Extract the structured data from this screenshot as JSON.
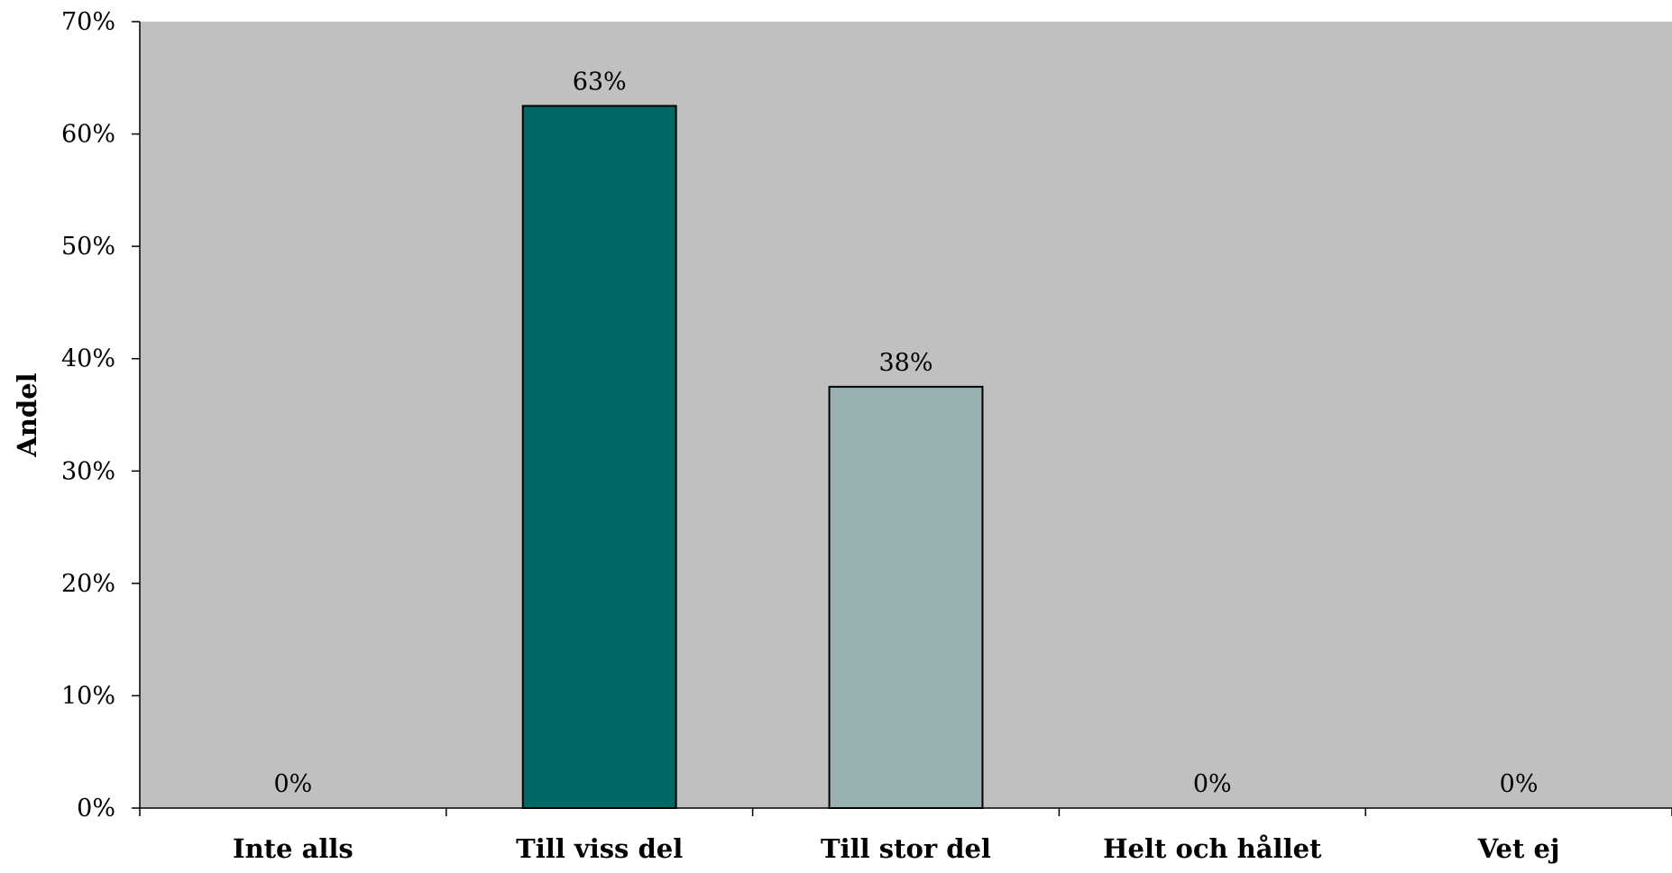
{
  "chart_data": {
    "type": "bar",
    "categories": [
      "Inte alls",
      "Till viss del",
      "Till stor del",
      "Helt och hållet",
      "Vet ej"
    ],
    "values": [
      0,
      62.5,
      37.5,
      0,
      0
    ],
    "data_labels": [
      "0%",
      "63%",
      "38%",
      "0%",
      "0%"
    ],
    "bar_colors": [
      "#006966",
      "#006966",
      "#98b0b1",
      "#98b0b1",
      "#98b0b1"
    ],
    "ylabel": "Andel",
    "xlabel": "",
    "ylim": [
      0,
      70
    ],
    "yticks": [
      0,
      10,
      20,
      30,
      40,
      50,
      60,
      70
    ],
    "ytick_labels": [
      "0%",
      "10%",
      "20%",
      "30%",
      "40%",
      "50%",
      "60%",
      "70%"
    ],
    "plot_background": "#c0c0c0",
    "grid": false,
    "legend": "none"
  }
}
